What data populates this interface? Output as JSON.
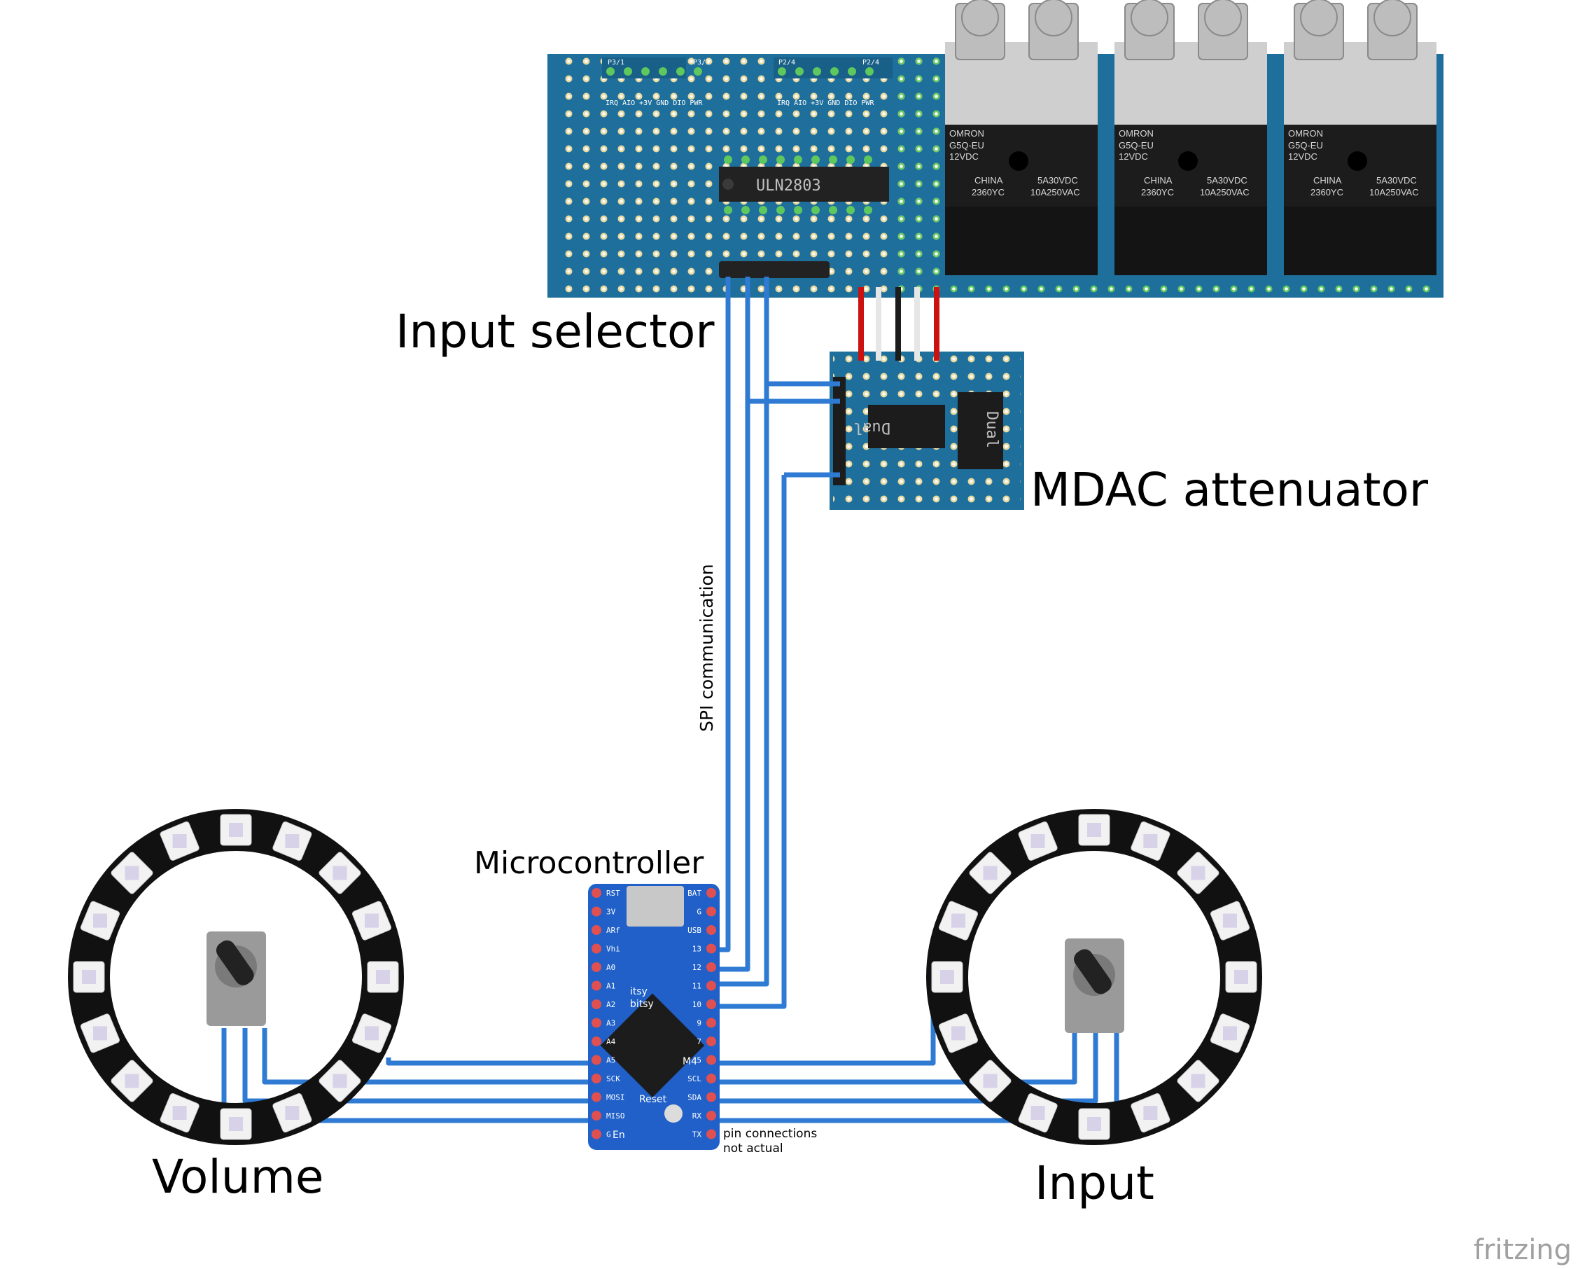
{
  "labels": {
    "input_selector": "Input selector",
    "mdac_attenuator": "MDAC attenuator",
    "microcontroller": "Microcontroller",
    "volume": "Volume",
    "input": "Input",
    "spi": "SPI communication",
    "pin_note_1": "pin connections",
    "pin_note_2": "not actual",
    "brand": "fritzing"
  },
  "input_selector_board": {
    "chip": "ULN2803",
    "header_a_left": "P3/1",
    "header_a_right": "P3/1",
    "header_b_left": "P2/4",
    "header_b_right": "P2/4",
    "header_pins": "IRQ AIO +3V GND DIO PWR",
    "relays": [
      {
        "brand": "OMRON",
        "model": "G5Q-EU",
        "voltage": "12VDC",
        "origin": "CHINA",
        "code": "2360YC",
        "rating1": "5A30VDC",
        "rating2": "10A250VAC"
      },
      {
        "brand": "OMRON",
        "model": "G5Q-EU",
        "voltage": "12VDC",
        "origin": "CHINA",
        "code": "2360YC",
        "rating1": "5A30VDC",
        "rating2": "10A250VAC"
      },
      {
        "brand": "OMRON",
        "model": "G5Q-EU",
        "voltage": "12VDC",
        "origin": "CHINA",
        "code": "2360YC",
        "rating1": "5A30VDC",
        "rating2": "10A250VAC"
      }
    ]
  },
  "mdac_board": {
    "chip_left": "Dual",
    "chip_right": "Dual"
  },
  "microcontroller_board": {
    "left_pins": [
      "RST",
      "3V",
      "ARf",
      "Vhi",
      "A0",
      "A1",
      "A2",
      "A3",
      "A4",
      "A5",
      "SCK",
      "MOSI",
      "MISO",
      "G"
    ],
    "right_pins": [
      "BAT",
      "G",
      "USB",
      "13",
      "12",
      "11",
      "10",
      "9",
      "7",
      "5",
      "SCL",
      "SDA",
      "RX",
      "TX"
    ],
    "silk_1": "itsy",
    "silk_2": "bitsy",
    "silk_3": "M4",
    "reset": "Reset",
    "en": "En"
  },
  "colors": {
    "pcb": "#1f6f9c",
    "wire": "#2f7bd3",
    "wire_red": "#cc1111",
    "micro": "#2060c8"
  }
}
